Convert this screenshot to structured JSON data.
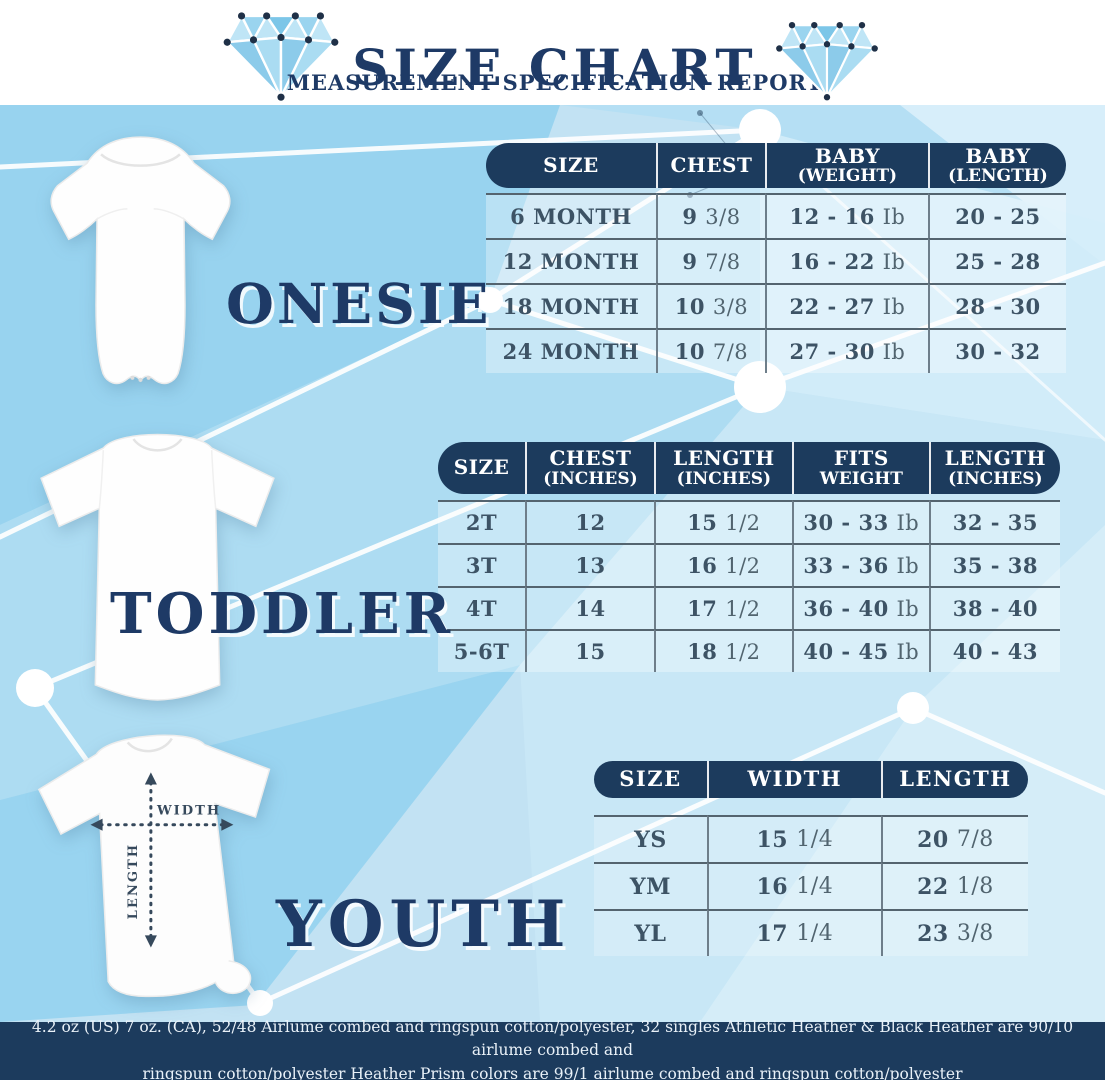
{
  "header": {
    "title": "SIZE CHART",
    "subtitle": "MEASUREMENT SPECIFICATION REPORT"
  },
  "measure": {
    "width_label": "WIDTH",
    "length_label": "LENGTH"
  },
  "chart_data": [
    {
      "type": "table",
      "title": "ONESIE",
      "columns": [
        [
          "SIZE"
        ],
        [
          "CHEST"
        ],
        [
          "BABY",
          "(WEIGHT)"
        ],
        [
          "BABY",
          "(LENGTH)"
        ]
      ],
      "rows": [
        [
          "6 MONTH",
          "9 3/8",
          "12 - 16 Ib",
          "20 - 25"
        ],
        [
          "12 MONTH",
          "9 7/8",
          "16 - 22 Ib",
          "25 - 28"
        ],
        [
          "18 MONTH",
          "10 3/8",
          "22 - 27 Ib",
          "28 - 30"
        ],
        [
          "24 MONTH",
          "10 7/8",
          "27 - 30 Ib",
          "30 - 32"
        ]
      ]
    },
    {
      "type": "table",
      "title": "TODDLER",
      "columns": [
        [
          "SIZE"
        ],
        [
          "CHEST",
          "(INCHES)"
        ],
        [
          "LENGTH",
          "(INCHES)"
        ],
        [
          "FITS",
          "WEIGHT"
        ],
        [
          "LENGTH",
          "(INCHES)"
        ]
      ],
      "rows": [
        [
          "2T",
          "12",
          "15 1/2",
          "30 - 33 Ib",
          "32 - 35"
        ],
        [
          "3T",
          "13",
          "16 1/2",
          "33 - 36 Ib",
          "35 - 38"
        ],
        [
          "4T",
          "14",
          "17 1/2",
          "36 - 40 Ib",
          "38 - 40"
        ],
        [
          "5-6T",
          "15",
          "18 1/2",
          "40 - 45 Ib",
          "40 - 43"
        ]
      ]
    },
    {
      "type": "table",
      "title": "YOUTH",
      "columns": [
        [
          "SIZE"
        ],
        [
          "WIDTH"
        ],
        [
          "LENGTH"
        ]
      ],
      "rows": [
        [
          "YS",
          "15 1/4",
          "20 7/8"
        ],
        [
          "YM",
          "16 1/4",
          "22 1/8"
        ],
        [
          "YL",
          "17 1/4",
          "23 3/8"
        ]
      ]
    }
  ],
  "footer": {
    "line1": "4.2 oz (US) 7 oz. (CA), 52/48 Airlume combed and ringspun cotton/polyester, 32 singles Athletic Heather & Black Heather are 90/10 airlume combed and",
    "line2": "ringspun cotton/polyester Heather Prism colors are 99/1 airlume combed and ringspun cotton/polyester"
  },
  "colors": {
    "navy": "#1c3b5d",
    "title_navy": "#1e3a66",
    "cell_text": "#3d5365",
    "background_blue": "#c2e2f3",
    "diamond_blue": "#8ccbea",
    "white": "#ffffff"
  }
}
